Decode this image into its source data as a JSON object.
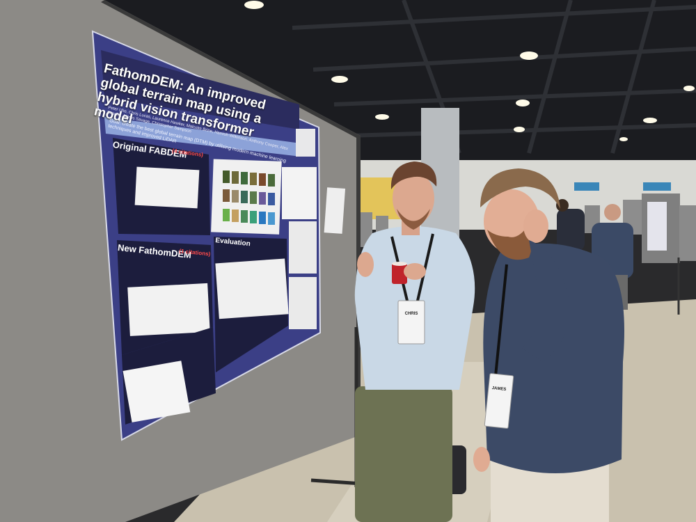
{
  "poster": {
    "title": "FathomDEM: An improved global terrain map using a hybrid vision transformer model",
    "authors": "Peter Uhe, Chris Lucas, Laurence Hawker, Malcolm Brine, Hamish Wilkinson, Anthony Cooper, Alex Saoulis, James Savage, Christopher Sampson",
    "goal": "Goal: create the best global terrain map (DTM) by utilising modern machine learning techniques and improved LiDAR",
    "section1_title": "Original FABDEM",
    "section1_badge": "(4 citations)",
    "section2_title": "New FathomDEM",
    "section2_badge": "(1 citations)",
    "section3_title": "Evaluation"
  },
  "badges": {
    "left_person": "CHRIS",
    "right_person": "JAMES"
  },
  "colors": {
    "poster_board": "#8c8a86",
    "poster_bg": "#3b3f86",
    "panel_dark": "#1c1d3d",
    "floor": "#c8c0ad",
    "ceiling": "#1a1b1e"
  }
}
